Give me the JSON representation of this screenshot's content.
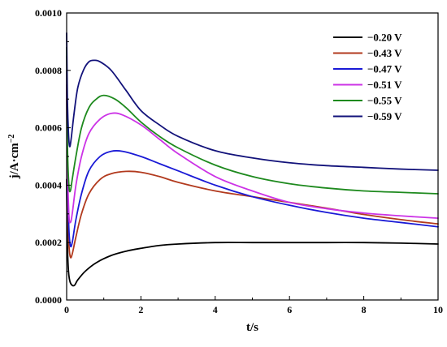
{
  "chart_data": {
    "type": "line",
    "xlabel": "t/s",
    "ylabel": "j/A·cm",
    "ylabel_superscript": "−2",
    "xlim": [
      0,
      10
    ],
    "ylim": [
      0.0,
      0.001
    ],
    "x_ticks": [
      "0",
      "2",
      "4",
      "6",
      "8",
      "10"
    ],
    "y_ticks": [
      "0.0000",
      "0.0002",
      "0.0004",
      "0.0006",
      "0.0008",
      "0.0010"
    ],
    "grid": false,
    "legend_position": "top-right",
    "series": [
      {
        "name": "−0.20 V",
        "color": "#000000",
        "points": [
          [
            0.0,
            0.00042
          ],
          [
            0.02,
            0.0002
          ],
          [
            0.05,
            0.0001
          ],
          [
            0.1,
            6e-05
          ],
          [
            0.2,
            5e-05
          ],
          [
            0.3,
            7e-05
          ],
          [
            0.5,
            0.0001
          ],
          [
            0.8,
            0.00013
          ],
          [
            1.2,
            0.000155
          ],
          [
            1.6,
            0.00017
          ],
          [
            2.0,
            0.00018
          ],
          [
            2.5,
            0.00019
          ],
          [
            3.0,
            0.000195
          ],
          [
            4.0,
            0.0002
          ],
          [
            5.0,
            0.0002
          ],
          [
            6.0,
            0.0002
          ],
          [
            7.0,
            0.0002
          ],
          [
            8.0,
            0.0002
          ],
          [
            9.0,
            0.000198
          ],
          [
            10.0,
            0.000195
          ]
        ]
      },
      {
        "name": "−0.43 V",
        "color": "#b23a1e",
        "points": [
          [
            0.0,
            0.00075
          ],
          [
            0.02,
            0.0004
          ],
          [
            0.06,
            0.0002
          ],
          [
            0.1,
            0.00015
          ],
          [
            0.15,
            0.00016
          ],
          [
            0.25,
            0.00022
          ],
          [
            0.4,
            0.0003
          ],
          [
            0.6,
            0.00037
          ],
          [
            0.9,
            0.00042
          ],
          [
            1.2,
            0.00044
          ],
          [
            1.6,
            0.000448
          ],
          [
            2.0,
            0.000445
          ],
          [
            2.5,
            0.00043
          ],
          [
            3.0,
            0.00041
          ],
          [
            4.0,
            0.00038
          ],
          [
            5.0,
            0.00036
          ],
          [
            6.0,
            0.00034
          ],
          [
            7.0,
            0.00032
          ],
          [
            8.0,
            0.000298
          ],
          [
            9.0,
            0.00028
          ],
          [
            10.0,
            0.000265
          ]
        ]
      },
      {
        "name": "−0.47 V",
        "color": "#1a1ad6",
        "points": [
          [
            0.0,
            0.0008
          ],
          [
            0.02,
            0.00045
          ],
          [
            0.06,
            0.00025
          ],
          [
            0.1,
            0.00019
          ],
          [
            0.15,
            0.0002
          ],
          [
            0.25,
            0.00028
          ],
          [
            0.4,
            0.00037
          ],
          [
            0.6,
            0.00045
          ],
          [
            0.9,
            0.0005
          ],
          [
            1.2,
            0.000518
          ],
          [
            1.5,
            0.000518
          ],
          [
            2.0,
            0.0005
          ],
          [
            2.5,
            0.000475
          ],
          [
            3.0,
            0.00045
          ],
          [
            4.0,
            0.0004
          ],
          [
            5.0,
            0.00036
          ],
          [
            6.0,
            0.00033
          ],
          [
            7.0,
            0.000305
          ],
          [
            8.0,
            0.000285
          ],
          [
            9.0,
            0.00027
          ],
          [
            10.0,
            0.000255
          ]
        ]
      },
      {
        "name": "−0.51 V",
        "color": "#cc33e6",
        "points": [
          [
            0.0,
            0.00085
          ],
          [
            0.02,
            0.0005
          ],
          [
            0.06,
            0.0003
          ],
          [
            0.1,
            0.00027
          ],
          [
            0.15,
            0.0003
          ],
          [
            0.25,
            0.0004
          ],
          [
            0.4,
            0.0005
          ],
          [
            0.6,
            0.00058
          ],
          [
            0.9,
            0.00063
          ],
          [
            1.2,
            0.00065
          ],
          [
            1.5,
            0.000645
          ],
          [
            2.0,
            0.00061
          ],
          [
            2.5,
            0.00056
          ],
          [
            3.0,
            0.00051
          ],
          [
            4.0,
            0.00043
          ],
          [
            5.0,
            0.00038
          ],
          [
            6.0,
            0.00034
          ],
          [
            7.0,
            0.000318
          ],
          [
            8.0,
            0.000303
          ],
          [
            9.0,
            0.000293
          ],
          [
            10.0,
            0.000285
          ]
        ]
      },
      {
        "name": "−0.55 V",
        "color": "#1e8a1e",
        "points": [
          [
            0.0,
            0.00088
          ],
          [
            0.02,
            0.00055
          ],
          [
            0.06,
            0.0004
          ],
          [
            0.1,
            0.00038
          ],
          [
            0.15,
            0.00042
          ],
          [
            0.25,
            0.0005
          ],
          [
            0.4,
            0.0006
          ],
          [
            0.6,
            0.00067
          ],
          [
            0.8,
            0.0007
          ],
          [
            1.0,
            0.000713
          ],
          [
            1.3,
            0.0007
          ],
          [
            1.6,
            0.00067
          ],
          [
            2.0,
            0.00062
          ],
          [
            2.5,
            0.00057
          ],
          [
            3.0,
            0.00053
          ],
          [
            4.0,
            0.00047
          ],
          [
            5.0,
            0.00043
          ],
          [
            6.0,
            0.000405
          ],
          [
            7.0,
            0.00039
          ],
          [
            8.0,
            0.00038
          ],
          [
            9.0,
            0.000375
          ],
          [
            10.0,
            0.00037
          ]
        ]
      },
      {
        "name": "−0.59 V",
        "color": "#12127a",
        "points": [
          [
            0.0,
            0.00093
          ],
          [
            0.02,
            0.0007
          ],
          [
            0.05,
            0.00058
          ],
          [
            0.08,
            0.000535
          ],
          [
            0.12,
            0.00056
          ],
          [
            0.2,
            0.00065
          ],
          [
            0.3,
            0.00074
          ],
          [
            0.45,
            0.0008
          ],
          [
            0.6,
            0.00083
          ],
          [
            0.75,
            0.000835
          ],
          [
            0.9,
            0.00083
          ],
          [
            1.2,
            0.0008
          ],
          [
            1.6,
            0.00073
          ],
          [
            2.0,
            0.00066
          ],
          [
            2.5,
            0.00061
          ],
          [
            3.0,
            0.00057
          ],
          [
            4.0,
            0.00052
          ],
          [
            5.0,
            0.000495
          ],
          [
            6.0,
            0.000478
          ],
          [
            7.0,
            0.000468
          ],
          [
            8.0,
            0.000462
          ],
          [
            9.0,
            0.000456
          ],
          [
            10.0,
            0.000452
          ]
        ]
      }
    ]
  }
}
